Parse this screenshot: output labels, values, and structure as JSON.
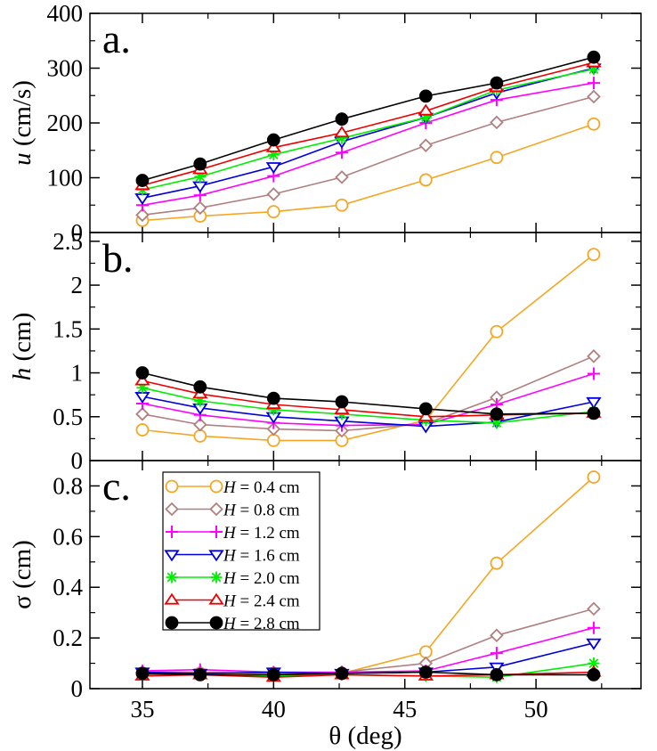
{
  "chart_data": [
    {
      "type": "line",
      "panel_label": "a.",
      "ylabel": "u (cm/s)",
      "ylabel_var": "u",
      "ylabel_unit": " (cm/s)",
      "xlim": [
        33,
        54
      ],
      "ylim": [
        0,
        400
      ],
      "yticks": [
        "0",
        "100",
        "200",
        "300",
        "400"
      ],
      "ytick_values": [
        0,
        100,
        200,
        300,
        400
      ],
      "x": [
        35,
        37.2,
        40,
        42.6,
        45.8,
        48.5,
        52.2
      ],
      "series": [
        {
          "name": "H = 0.4 cm",
          "values": [
            22,
            30,
            38,
            50,
            96,
            137,
            198
          ]
        },
        {
          "name": "H = 0.8 cm",
          "values": [
            32,
            45,
            70,
            101,
            159,
            201,
            248
          ]
        },
        {
          "name": "H = 1.2 cm",
          "values": [
            50,
            68,
            103,
            146,
            200,
            242,
            273
          ]
        },
        {
          "name": "H = 1.6 cm",
          "values": [
            63,
            85,
            120,
            166,
            210,
            255,
            300
          ]
        },
        {
          "name": "H = 2.0 cm",
          "values": [
            78,
            102,
            142,
            172,
            210,
            260,
            298
          ]
        },
        {
          "name": "H = 2.4 cm",
          "values": [
            86,
            115,
            155,
            182,
            222,
            265,
            310
          ]
        },
        {
          "name": "H = 2.8 cm",
          "values": [
            95,
            125,
            169,
            207,
            249,
            273,
            320
          ]
        }
      ]
    },
    {
      "type": "line",
      "panel_label": "b.",
      "ylabel": "h (cm)",
      "ylabel_var": "h",
      "ylabel_unit": " (cm)",
      "xlim": [
        33,
        54
      ],
      "ylim": [
        0,
        2.6
      ],
      "yticks": [
        "0",
        "0.5",
        "1",
        "1.5",
        "2",
        "2.5"
      ],
      "ytick_values": [
        0,
        0.5,
        1,
        1.5,
        2,
        2.5
      ],
      "x": [
        35,
        37.2,
        40,
        42.6,
        45.8,
        48.5,
        52.2
      ],
      "series": [
        {
          "name": "H = 0.4 cm",
          "values": [
            0.35,
            0.28,
            0.23,
            0.23,
            0.46,
            1.47,
            2.35
          ]
        },
        {
          "name": "H = 0.8 cm",
          "values": [
            0.53,
            0.41,
            0.36,
            0.34,
            0.42,
            0.72,
            1.19
          ]
        },
        {
          "name": "H = 1.2 cm",
          "values": [
            0.65,
            0.52,
            0.43,
            0.4,
            0.41,
            0.64,
            0.99
          ]
        },
        {
          "name": "H = 1.6 cm",
          "values": [
            0.73,
            0.6,
            0.5,
            0.45,
            0.39,
            0.44,
            0.67
          ]
        },
        {
          "name": "H = 2.0 cm",
          "values": [
            0.83,
            0.68,
            0.58,
            0.53,
            0.46,
            0.43,
            0.56
          ]
        },
        {
          "name": "H = 2.4 cm",
          "values": [
            0.91,
            0.76,
            0.64,
            0.58,
            0.5,
            0.52,
            0.54
          ]
        },
        {
          "name": "H = 2.8 cm",
          "values": [
            1.0,
            0.84,
            0.71,
            0.67,
            0.59,
            0.53,
            0.54
          ]
        }
      ]
    },
    {
      "type": "line",
      "panel_label": "c.",
      "ylabel": "σ (cm)",
      "ylabel_var": "σ",
      "ylabel_unit": "  (cm)",
      "xlabel": "θ (deg)",
      "xlim": [
        33,
        54
      ],
      "ylim": [
        0,
        0.9
      ],
      "yticks": [
        "0",
        "0.2",
        "0.4",
        "0.6",
        "0.8"
      ],
      "ytick_values": [
        0,
        0.2,
        0.4,
        0.6,
        0.8
      ],
      "xticks": [
        "35",
        "40",
        "45",
        "50"
      ],
      "xtick_values": [
        35,
        40,
        45,
        50
      ],
      "x": [
        35,
        37.2,
        40,
        42.6,
        45.8,
        48.5,
        52.2
      ],
      "series": [
        {
          "name": "H = 0.4 cm",
          "values": [
            0.06,
            0.06,
            0.06,
            0.06,
            0.145,
            0.495,
            0.835
          ]
        },
        {
          "name": "H = 0.8 cm",
          "values": [
            0.065,
            0.065,
            0.06,
            0.065,
            0.1,
            0.21,
            0.315
          ]
        },
        {
          "name": "H = 1.2 cm",
          "values": [
            0.07,
            0.075,
            0.065,
            0.065,
            0.07,
            0.14,
            0.24
          ]
        },
        {
          "name": "H = 1.6 cm",
          "values": [
            0.065,
            0.06,
            0.065,
            0.06,
            0.065,
            0.085,
            0.18
          ]
        },
        {
          "name": "H = 2.0 cm",
          "values": [
            0.055,
            0.055,
            0.05,
            0.055,
            0.05,
            0.045,
            0.1
          ]
        },
        {
          "name": "H = 2.4 cm",
          "values": [
            0.05,
            0.055,
            0.045,
            0.055,
            0.05,
            0.055,
            0.065
          ]
        },
        {
          "name": "H = 2.8 cm",
          "values": [
            0.06,
            0.055,
            0.055,
            0.06,
            0.065,
            0.055,
            0.055
          ]
        }
      ]
    }
  ],
  "legend": {
    "placement": "top-left of panel c",
    "entries": [
      {
        "var": "H",
        "text": " = 0.4 cm",
        "color": "#f5a623",
        "marker": "circle-open"
      },
      {
        "var": "H",
        "text": " = 0.8 cm",
        "color": "#b08080",
        "marker": "diamond-open"
      },
      {
        "var": "H",
        "text": " = 1.2 cm",
        "color": "#ff00ff",
        "marker": "plus"
      },
      {
        "var": "H",
        "text": " = 1.6 cm",
        "color": "#0000dd",
        "marker": "triangle-down-open"
      },
      {
        "var": "H",
        "text": " = 2.0 cm",
        "color": "#00ee00",
        "marker": "star"
      },
      {
        "var": "H",
        "text": " = 2.4 cm",
        "color": "#ee0000",
        "marker": "triangle-up-open"
      },
      {
        "var": "H",
        "text": " = 2.8 cm",
        "color": "#000000",
        "marker": "circle-filled"
      }
    ]
  }
}
